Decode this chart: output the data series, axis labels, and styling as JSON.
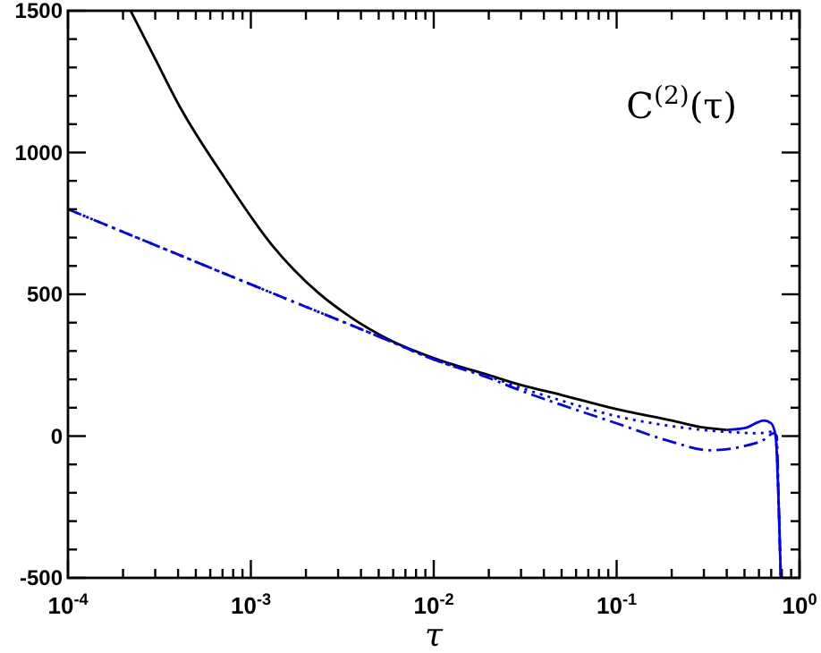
{
  "chart_data": {
    "type": "line",
    "xlabel": "τ",
    "annotations": [
      "C$^{(2)}$(τ)"
    ],
    "log": "x",
    "xlim": [
      0.0001,
      1
    ],
    "ylim": [
      -500,
      1500
    ],
    "xticks": [
      {
        "value": 0.0001,
        "label": "10$^{-4}$"
      },
      {
        "value": 0.0002,
        "label": null
      },
      {
        "value": 0.0003,
        "label": null
      },
      {
        "value": 0.0004,
        "label": null
      },
      {
        "value": 0.0005,
        "label": null
      },
      {
        "value": 0.0006,
        "label": null
      },
      {
        "value": 0.0007,
        "label": null
      },
      {
        "value": 0.0008,
        "label": null
      },
      {
        "value": 0.0009,
        "label": null
      },
      {
        "value": 0.001,
        "label": "10$^{-3}$"
      },
      {
        "value": 0.002,
        "label": null
      },
      {
        "value": 0.003,
        "label": null
      },
      {
        "value": 0.004,
        "label": null
      },
      {
        "value": 0.005,
        "label": null
      },
      {
        "value": 0.006,
        "label": null
      },
      {
        "value": 0.007,
        "label": null
      },
      {
        "value": 0.008,
        "label": null
      },
      {
        "value": 0.009,
        "label": null
      },
      {
        "value": 0.01,
        "label": "10$^{-2}$"
      },
      {
        "value": 0.02,
        "label": null
      },
      {
        "value": 0.03,
        "label": null
      },
      {
        "value": 0.04,
        "label": null
      },
      {
        "value": 0.05,
        "label": null
      },
      {
        "value": 0.06,
        "label": null
      },
      {
        "value": 0.07,
        "label": null
      },
      {
        "value": 0.08,
        "label": null
      },
      {
        "value": 0.09,
        "label": null
      },
      {
        "value": 0.1,
        "label": "10$^{-1}$"
      },
      {
        "value": 0.2,
        "label": null
      },
      {
        "value": 0.3,
        "label": null
      },
      {
        "value": 0.4,
        "label": null
      },
      {
        "value": 0.5,
        "label": null
      },
      {
        "value": 0.6,
        "label": null
      },
      {
        "value": 0.7,
        "label": null
      },
      {
        "value": 0.8,
        "label": null
      },
      {
        "value": 0.9,
        "label": null
      },
      {
        "value": 1,
        "label": "10$^{0}$"
      }
    ],
    "yticks": [
      -500,
      {
        "value": -400,
        "label": null
      },
      {
        "value": -300,
        "label": null
      },
      {
        "value": -200,
        "label": null
      },
      {
        "value": -100,
        "label": null
      },
      0,
      {
        "value": 100,
        "label": null
      },
      {
        "value": 200,
        "label": null
      },
      {
        "value": 300,
        "label": null
      },
      {
        "value": 400,
        "label": null
      },
      500,
      {
        "value": 600,
        "label": null
      },
      {
        "value": 700,
        "label": null
      },
      {
        "value": 800,
        "label": null
      },
      {
        "value": 900,
        "label": null
      },
      1000,
      {
        "value": 1100,
        "label": null
      },
      {
        "value": 1200,
        "label": null
      },
      {
        "value": 1300,
        "label": null
      },
      {
        "value": 1400,
        "label": null
      },
      1500
    ],
    "grid": false,
    "series": [
      {
        "color": "#000000",
        "line_style": "solid",
        "x": [
          0.00022,
          0.0003,
          0.00041,
          0.00072,
          0.0013,
          0.00234,
          0.0035,
          0.0057,
          0.01,
          0.02,
          0.03,
          0.05,
          0.1,
          0.2,
          0.3,
          0.4
        ],
        "values": [
          1500,
          1330,
          1160,
          910,
          675,
          505,
          420,
          340,
          275,
          215,
          180,
          145,
          95,
          55,
          30,
          22
        ]
      },
      {
        "color": "#0000ff",
        "line_style": "solid",
        "x": [
          0.4,
          0.5,
          0.64,
          0.7,
          0.74,
          0.77,
          0.79
        ],
        "values": [
          22,
          28,
          55,
          45,
          0,
          -250,
          -500
        ]
      },
      {
        "color": "#0000ff",
        "line_style": "dotted",
        "x": [
          0.0001,
          0.001,
          0.006,
          0.01,
          0.02,
          0.03,
          0.05,
          0.1,
          0.2,
          0.4,
          0.6,
          0.7,
          0.74,
          0.77,
          0.79
        ],
        "values": [
          800,
          535,
          330,
          270,
          210,
          170,
          125,
          70,
          35,
          15,
          10,
          15,
          0,
          -250,
          -500
        ]
      },
      {
        "color": "#0000ff",
        "line_style": "dashdot",
        "x": [
          0.0001,
          0.001,
          0.006,
          0.01,
          0.02,
          0.03,
          0.05,
          0.1,
          0.2,
          0.32,
          0.5,
          0.65,
          0.72,
          0.75,
          0.77,
          0.79
        ],
        "values": [
          800,
          535,
          330,
          270,
          205,
          160,
          110,
          45,
          -20,
          -50,
          -35,
          -10,
          10,
          0,
          -250,
          -500
        ]
      }
    ]
  }
}
